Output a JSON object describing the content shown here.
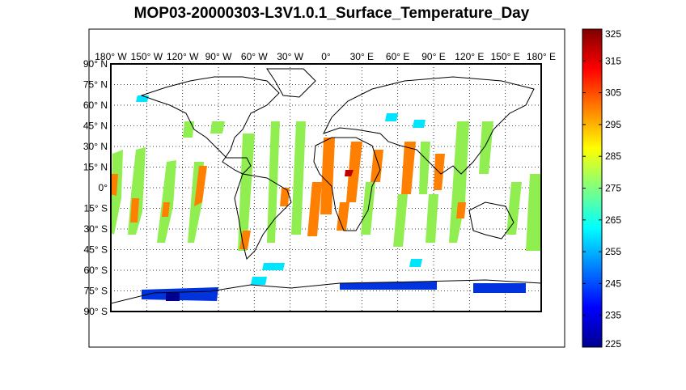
{
  "title": "MOP03-20000303-L3V1.0.1_Surface_Temperature_Day",
  "map": {
    "projection": "equirectangular",
    "grid": "dotted",
    "lon_labels": [
      "180° W",
      "150° W",
      "120° W",
      "90° W",
      "60° W",
      "30° W",
      "0°",
      "30° E",
      "60° E",
      "90° E",
      "120° E",
      "150° E",
      "180° E"
    ],
    "lat_labels": [
      "90° N",
      "75° N",
      "60° N",
      "45° N",
      "30° N",
      "15° N",
      "0°",
      "15° S",
      "30° S",
      "45° S",
      "60° S",
      "75° S",
      "90° S"
    ],
    "lon_range": [
      -180,
      180
    ],
    "lat_range": [
      -90,
      90
    ]
  },
  "colorbar": {
    "ticks": [
      "325",
      "315",
      "305",
      "295",
      "285",
      "275",
      "265",
      "255",
      "245",
      "235",
      "225"
    ],
    "range": [
      225,
      325
    ],
    "colormap": "jet",
    "colors": [
      "#00008f",
      "#0000ff",
      "#0080ff",
      "#00ffff",
      "#80ff80",
      "#ffff00",
      "#ff8000",
      "#ff0000",
      "#800000"
    ]
  },
  "colors": {
    "swath_tropics": "#ff8000",
    "swath_midlat": "#90ee50",
    "swath_highlat": "#00e5ff",
    "swath_antarctic": "#0033dd"
  }
}
